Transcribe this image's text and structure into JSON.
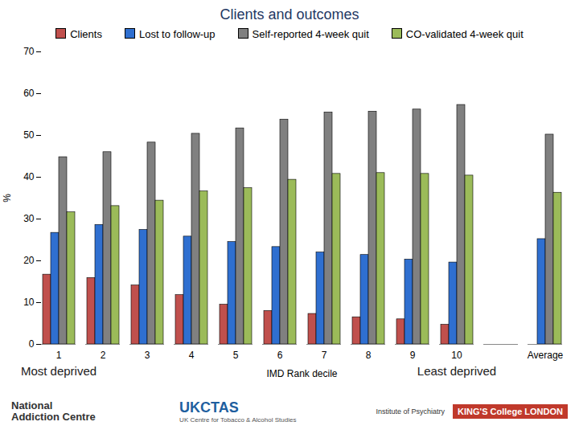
{
  "chart_data": {
    "type": "bar",
    "title": "Clients and outcomes",
    "x_label": "IMD Rank decile",
    "y_label": "%",
    "categories": [
      "1",
      "2",
      "3",
      "4",
      "5",
      "6",
      "7",
      "8",
      "9",
      "10",
      null,
      "Average"
    ],
    "series": [
      {
        "name": "Clients",
        "color": "#c0504d",
        "values": [
          16.7,
          15.9,
          14.1,
          11.8,
          9.5,
          8.0,
          7.3,
          6.5,
          6.0,
          4.7,
          null,
          null
        ]
      },
      {
        "name": "Lost to follow-up",
        "color": "#2f6fd0",
        "values": [
          26.7,
          28.6,
          27.4,
          25.8,
          24.5,
          23.3,
          22.0,
          21.4,
          20.3,
          19.6,
          null,
          25.2
        ]
      },
      {
        "name": "Self-reported 4-week quit",
        "color": "#808080",
        "values": [
          44.8,
          46.0,
          48.3,
          50.4,
          51.7,
          53.8,
          55.5,
          55.7,
          56.2,
          57.3,
          null,
          50.2
        ]
      },
      {
        "name": "CO-validated 4-week quit",
        "color": "#9bbb59",
        "values": [
          31.6,
          33.1,
          34.4,
          36.6,
          37.4,
          39.4,
          40.8,
          41.0,
          40.8,
          40.4,
          null,
          36.3
        ]
      }
    ],
    "ylim": [
      0,
      70
    ],
    "yticks": [
      0,
      10,
      20,
      30,
      40,
      50,
      60,
      70
    ],
    "grid": false,
    "legend": "top",
    "annotations": [
      {
        "text": "Most deprived",
        "category": "1"
      },
      {
        "text": "Least deprived",
        "category": "10"
      }
    ]
  },
  "logos": [
    "National Addiction Centre",
    "UKCTAS",
    "UK Centre for Tobacco & Alcohol Studies",
    "Institute of Psychiatry",
    "KING'S College LONDON"
  ]
}
